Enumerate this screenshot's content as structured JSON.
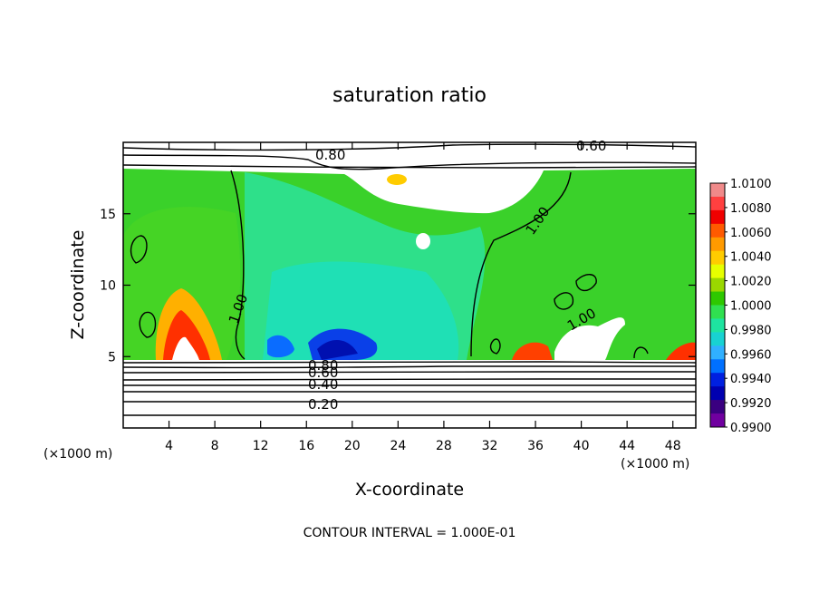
{
  "chart_data": {
    "type": "heatmap",
    "title": "saturation ratio",
    "xlabel": "X-coordinate",
    "ylabel": "Z-coordinate",
    "x_unit": "(×1000 m)",
    "y_unit": "(×1000 m)",
    "xlim": [
      0,
      50
    ],
    "ylim": [
      0,
      20
    ],
    "x_ticks": [
      "4",
      "8",
      "12",
      "16",
      "20",
      "24",
      "28",
      "32",
      "36",
      "40",
      "44",
      "48"
    ],
    "y_ticks": [
      "5",
      "10",
      "15"
    ],
    "footer": "CONTOUR INTERVAL = 1.000E-01",
    "colorbar": {
      "labels": [
        "1.0100",
        "1.0080",
        "1.0060",
        "1.0040",
        "1.0020",
        "1.0000",
        "0.9980",
        "0.9960",
        "0.9940",
        "0.9920",
        "0.9900"
      ],
      "colors": [
        "#f08a8a",
        "#ff4040",
        "#f00000",
        "#ff5a00",
        "#ff9a00",
        "#ffcc00",
        "#e6ff00",
        "#9ad800",
        "#2ec800",
        "#30e050",
        "#1ee4a0",
        "#18d2d2",
        "#30b0ff",
        "#0070ff",
        "#0020e0",
        "#0000b0",
        "#3a0080",
        "#7000a0"
      ]
    },
    "contour_labels": [
      "0.80",
      "0.60",
      "1.00",
      "1.00",
      "1.00",
      "0.80",
      "0.60",
      "0.40",
      "0.20"
    ]
  }
}
